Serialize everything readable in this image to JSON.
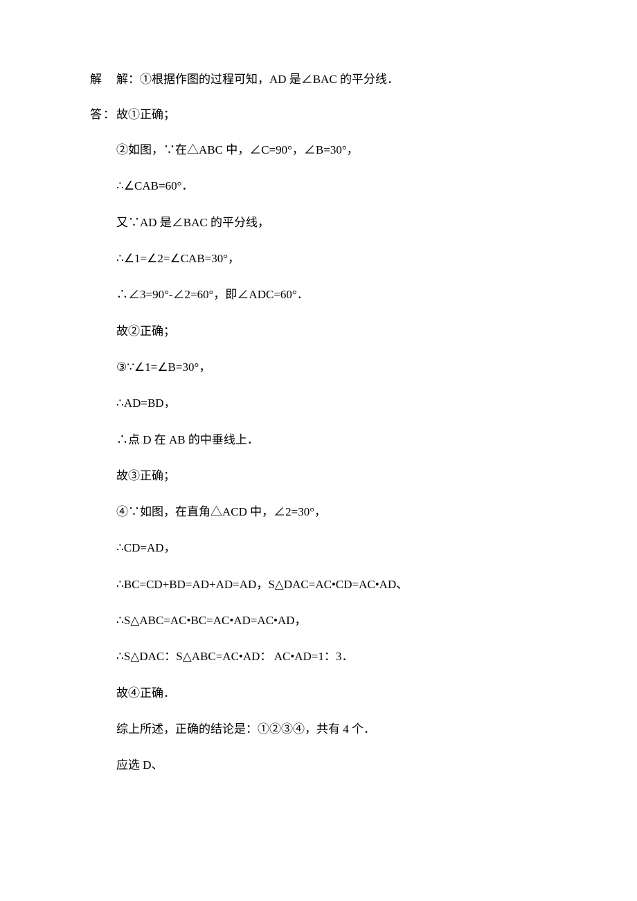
{
  "labels": {
    "jie": "解",
    "da": "答："
  },
  "lines": {
    "l1": "解：①根据作图的过程可知，AD 是∠BAC 的平分线．",
    "l2": "故①正确；",
    "l3": "②如图，∵在△ABC 中，∠C=90°，∠B=30°，",
    "l4": "∴∠CAB=60°．",
    "l5": "又∵AD 是∠BAC 的平分线，",
    "l6": "∴∠1=∠2=∠CAB=30°，",
    "l7": "∴∠3=90°-∠2=60°，即∠ADC=60°．",
    "l8": "故②正确；",
    "l9": "③∵∠1=∠B=30°，",
    "l10": "∴AD=BD，",
    "l11": "∴点 D 在 AB 的中垂线上．",
    "l12": "故③正确；",
    "l13": "④∵如图，在直角△ACD 中，∠2=30°，",
    "l14": "∴CD=AD，",
    "l15": "∴BC=CD+BD=AD+AD=AD，S△DAC=AC•CD=AC•AD、",
    "l16": "∴S△ABC=AC•BC=AC•AD=AC•AD，",
    "l17": "∴S△DAC：S△ABC=AC•AD： AC•AD=1：3．",
    "l18": "故④正确．",
    "l19": "综上所述，正确的结论是：①②③④，共有 4 个．",
    "l20": "应选 D、"
  }
}
